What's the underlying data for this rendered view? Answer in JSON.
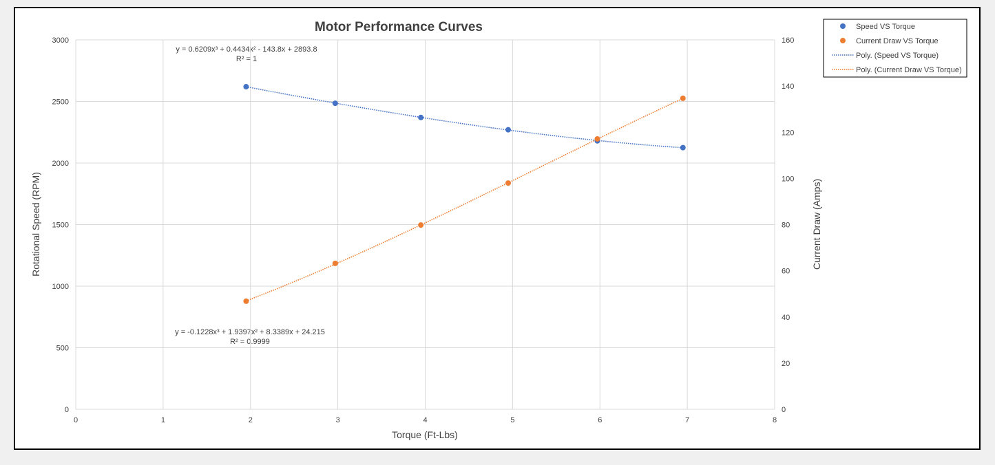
{
  "chart_data": {
    "type": "scatter",
    "title": "Motor Performance Curves",
    "xlabel": "Torque (Ft-Lbs)",
    "ylabel": "Rotational Speed (RPM)",
    "y2label": "Current Draw (Amps)",
    "xlim": [
      0,
      8
    ],
    "ylim": [
      0,
      3000
    ],
    "y2lim": [
      0,
      160
    ],
    "xticks": [
      0,
      1,
      2,
      3,
      4,
      5,
      6,
      7,
      8
    ],
    "yticks": [
      0,
      500,
      1000,
      1500,
      2000,
      2500,
      3000
    ],
    "y2ticks": [
      0,
      20,
      40,
      60,
      80,
      100,
      120,
      140,
      160
    ],
    "grid": true,
    "legend_position": "top-right outside",
    "series": [
      {
        "name": "Speed VS Torque",
        "axis": "left",
        "color": "#4472C4",
        "x": [
          1.95,
          2.97,
          3.95,
          4.95,
          5.97,
          6.95
        ],
        "y": [
          2620,
          2485,
          2370,
          2270,
          2180,
          2125
        ]
      },
      {
        "name": "Current Draw VS Torque",
        "axis": "right",
        "color": "#ED7D31",
        "x": [
          1.95,
          2.97,
          3.95,
          4.95,
          5.97,
          6.95
        ],
        "y": [
          46.8,
          63.2,
          79.8,
          98.0,
          117.1,
          134.7
        ]
      }
    ],
    "trendlines": [
      {
        "name": "Poly. (Speed VS Torque)",
        "axis": "left",
        "color": "#4472C4",
        "coefficients": [
          0.6209,
          0.4434,
          -143.8,
          2893.8
        ],
        "equation": "y = 0.6209x³ + 0.4434x² - 143.8x + 2893.8",
        "r2": "R² = 1"
      },
      {
        "name": "Poly. (Current Draw VS Torque)",
        "axis": "right",
        "color": "#ED7D31",
        "coefficients": [
          -0.1228,
          1.9397,
          8.3389,
          24.215
        ],
        "equation": "y = -0.1228x³ + 1.9397x² + 8.3389x + 24.215",
        "r2": "R² = 0.9999"
      }
    ]
  }
}
